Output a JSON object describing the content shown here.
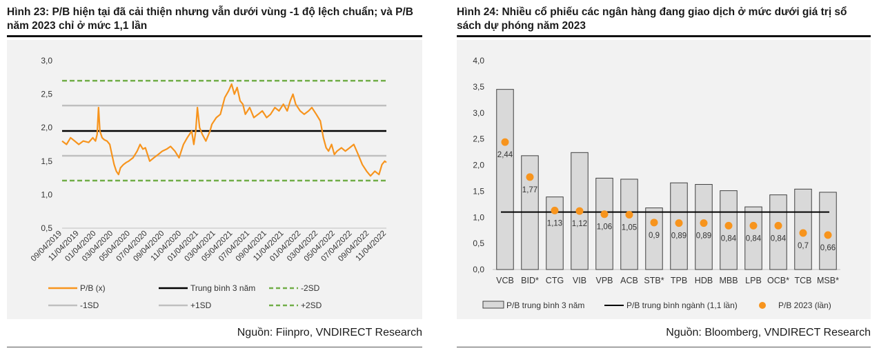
{
  "left": {
    "title": "Hình 23: P/B hiện tại đã cải thiện nhưng vẫn dưới vùng -1 độ lệch chuẩn; và P/B năm 2023 chỉ ở mức 1,1 lần",
    "source": "Nguồn: Fiinpro, VNDIRECT Research"
  },
  "right": {
    "title": "Hình 24: Nhiều cổ phiếu các ngân hàng đang giao dịch ở mức dưới giá trị sổ sách dự phóng năm 2023",
    "source": "Nguồn: Bloomberg, VNDIRECT Research"
  },
  "chart_data": [
    {
      "type": "line",
      "y_tick_labels": [
        "0,5",
        "1,0",
        "1,5",
        "2,0",
        "2,5",
        "3,0"
      ],
      "y_ticks": [
        0.5,
        1.0,
        1.5,
        2.0,
        2.5,
        3.0
      ],
      "ylim": [
        0.5,
        3.0
      ],
      "x_tick_labels": [
        "09/04/2019",
        "11/04/2019",
        "01/04/2020",
        "03/04/2020",
        "05/04/2020",
        "07/04/2020",
        "09/04/2020",
        "11/04/2020",
        "01/04/2021",
        "03/04/2021",
        "05/04/2021",
        "07/04/2021",
        "09/04/2021",
        "11/04/2021",
        "01/04/2022",
        "03/04/2022",
        "05/04/2022",
        "07/04/2022",
        "09/04/2022",
        "11/04/2022"
      ],
      "x_range": [
        "09/04/2019",
        "12/01/2022"
      ],
      "series": [
        {
          "name": "P/B (x)",
          "color": "#f7941d",
          "points": [
            [
              "09/04/2019",
              1.8
            ],
            [
              "09/20/2019",
              1.75
            ],
            [
              "10/05/2019",
              1.85
            ],
            [
              "10/20/2019",
              1.8
            ],
            [
              "11/04/2019",
              1.75
            ],
            [
              "11/20/2019",
              1.8
            ],
            [
              "12/10/2019",
              1.78
            ],
            [
              "12/25/2019",
              1.85
            ],
            [
              "01/04/2020",
              1.8
            ],
            [
              "01/10/2020",
              1.9
            ],
            [
              "01/15/2020",
              2.3
            ],
            [
              "01/20/2020",
              1.95
            ],
            [
              "01/28/2020",
              1.85
            ],
            [
              "02/05/2020",
              1.82
            ],
            [
              "02/15/2020",
              1.8
            ],
            [
              "02/25/2020",
              1.75
            ],
            [
              "03/04/2020",
              1.6
            ],
            [
              "03/12/2020",
              1.45
            ],
            [
              "03/20/2020",
              1.35
            ],
            [
              "03/28/2020",
              1.3
            ],
            [
              "04/04/2020",
              1.4
            ],
            [
              "04/15/2020",
              1.45
            ],
            [
              "04/25/2020",
              1.48
            ],
            [
              "05/04/2020",
              1.5
            ],
            [
              "05/20/2020",
              1.55
            ],
            [
              "06/04/2020",
              1.65
            ],
            [
              "06/15/2020",
              1.75
            ],
            [
              "06/25/2020",
              1.68
            ],
            [
              "07/04/2020",
              1.7
            ],
            [
              "07/20/2020",
              1.5
            ],
            [
              "08/04/2020",
              1.55
            ],
            [
              "08/20/2020",
              1.6
            ],
            [
              "09/04/2020",
              1.65
            ],
            [
              "09/20/2020",
              1.68
            ],
            [
              "10/04/2020",
              1.72
            ],
            [
              "10/20/2020",
              1.65
            ],
            [
              "11/04/2020",
              1.55
            ],
            [
              "11/20/2020",
              1.75
            ],
            [
              "12/04/2020",
              1.85
            ],
            [
              "12/20/2020",
              1.95
            ],
            [
              "12/28/2020",
              1.75
            ],
            [
              "01/04/2021",
              1.95
            ],
            [
              "01/10/2021",
              2.3
            ],
            [
              "01/18/2021",
              2.0
            ],
            [
              "01/28/2021",
              1.9
            ],
            [
              "02/10/2021",
              1.8
            ],
            [
              "02/25/2021",
              1.95
            ],
            [
              "03/04/2021",
              2.05
            ],
            [
              "03/20/2021",
              2.15
            ],
            [
              "04/04/2021",
              2.2
            ],
            [
              "04/20/2021",
              2.45
            ],
            [
              "05/04/2021",
              2.55
            ],
            [
              "05/15/2021",
              2.65
            ],
            [
              "05/25/2021",
              2.5
            ],
            [
              "06/04/2021",
              2.6
            ],
            [
              "06/15/2021",
              2.4
            ],
            [
              "06/25/2021",
              2.35
            ],
            [
              "07/04/2021",
              2.2
            ],
            [
              "07/20/2021",
              2.3
            ],
            [
              "08/04/2021",
              2.15
            ],
            [
              "08/20/2021",
              2.2
            ],
            [
              "09/04/2021",
              2.25
            ],
            [
              "09/20/2021",
              2.15
            ],
            [
              "10/04/2021",
              2.2
            ],
            [
              "10/20/2021",
              2.3
            ],
            [
              "11/04/2021",
              2.25
            ],
            [
              "11/20/2021",
              2.35
            ],
            [
              "12/04/2021",
              2.25
            ],
            [
              "12/15/2021",
              2.4
            ],
            [
              "12/25/2021",
              2.5
            ],
            [
              "01/04/2022",
              2.35
            ],
            [
              "01/20/2022",
              2.25
            ],
            [
              "02/04/2022",
              2.2
            ],
            [
              "02/20/2022",
              2.25
            ],
            [
              "03/04/2022",
              2.3
            ],
            [
              "03/20/2022",
              2.2
            ],
            [
              "04/04/2022",
              2.1
            ],
            [
              "04/15/2022",
              1.85
            ],
            [
              "04/25/2022",
              1.7
            ],
            [
              "05/04/2022",
              1.65
            ],
            [
              "05/15/2022",
              1.75
            ],
            [
              "05/25/2022",
              1.6
            ],
            [
              "06/04/2022",
              1.65
            ],
            [
              "06/20/2022",
              1.7
            ],
            [
              "07/04/2022",
              1.65
            ],
            [
              "07/20/2022",
              1.7
            ],
            [
              "08/04/2022",
              1.75
            ],
            [
              "08/20/2022",
              1.6
            ],
            [
              "09/04/2022",
              1.45
            ],
            [
              "09/20/2022",
              1.35
            ],
            [
              "10/04/2022",
              1.28
            ],
            [
              "10/20/2022",
              1.35
            ],
            [
              "11/04/2022",
              1.3
            ],
            [
              "11/15/2022",
              1.45
            ],
            [
              "11/25/2022",
              1.5
            ],
            [
              "12/01/2022",
              1.48
            ]
          ]
        },
        {
          "name": "Trung bình 3 năm",
          "color": "#000000",
          "value": 1.95
        },
        {
          "name": "-2SD",
          "color": "#70ad47",
          "value": 1.21
        },
        {
          "name": "-1SD",
          "color": "#bfbfbf",
          "value": 1.58
        },
        {
          "name": "+1SD",
          "color": "#bfbfbf",
          "value": 2.33
        },
        {
          "name": "+2SD",
          "color": "#70ad47",
          "value": 2.7
        }
      ],
      "grid": false,
      "legend": "bottom"
    },
    {
      "type": "bar",
      "categories": [
        "VCB",
        "BID*",
        "CTG",
        "VIB",
        "VPB",
        "ACB",
        "STB*",
        "TPB",
        "HDB",
        "MBB",
        "LPB",
        "OCB*",
        "TCB",
        "MSB*"
      ],
      "y_tick_labels": [
        "0,0",
        "0,5",
        "1,0",
        "1,5",
        "2,0",
        "2,5",
        "3,0",
        "3,5",
        "4,0"
      ],
      "y_ticks": [
        0,
        0.5,
        1.0,
        1.5,
        2.0,
        2.5,
        3.0,
        3.5,
        4.0
      ],
      "ylim": [
        0,
        4.0
      ],
      "series": [
        {
          "name": "P/B trung bình 3 năm",
          "color": "#d9d9d9",
          "values": [
            3.45,
            2.18,
            1.39,
            2.24,
            1.75,
            1.73,
            1.18,
            1.66,
            1.63,
            1.51,
            1.2,
            1.43,
            1.54,
            1.48
          ]
        },
        {
          "name": "P/B trung bình ngành (1,1 lần)",
          "color": "#000000",
          "value": 1.1
        },
        {
          "name": "P/B 2023 (lần)",
          "color": "#f7941d",
          "values": [
            2.44,
            1.77,
            1.13,
            1.12,
            1.06,
            1.05,
            0.9,
            0.89,
            0.89,
            0.84,
            0.84,
            0.84,
            0.7,
            0.66
          ],
          "labels": [
            "2,44",
            "1,77",
            "1,13",
            "1,12",
            "1,06",
            "1,05",
            "0,9",
            "0,89",
            "0,89",
            "0,84",
            "0,84",
            "0,84",
            "0,7",
            "0,66"
          ]
        }
      ],
      "grid": false,
      "legend": "bottom"
    }
  ]
}
